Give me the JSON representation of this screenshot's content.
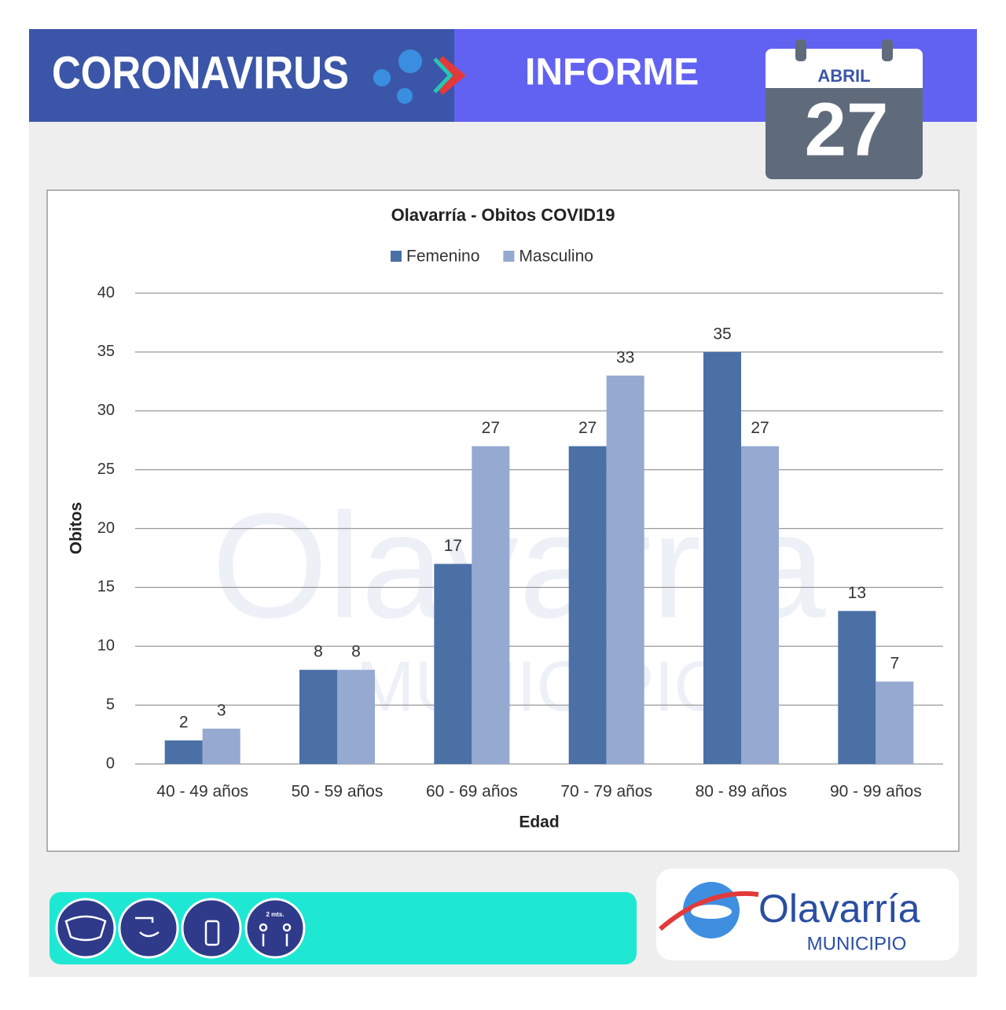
{
  "header": {
    "title": "CORONAVIRUS",
    "report": "INFORME",
    "month": "ABRIL",
    "day": "27"
  },
  "chart_data": {
    "type": "bar",
    "title": "Olavarría - Obitos COVID19",
    "x_label": "Edad",
    "y_label": "Obitos",
    "categories": [
      "40 - 49 años",
      "50 - 59 años",
      "60 - 69 años",
      "70 - 79 años",
      "80 - 89 años",
      "90 - 99 años"
    ],
    "series": [
      {
        "name": "Femenino",
        "color": "#4a70a6",
        "values": [
          2,
          8,
          17,
          27,
          35,
          13
        ]
      },
      {
        "name": "Masculino",
        "color": "#95a9d1",
        "values": [
          3,
          8,
          27,
          33,
          27,
          7
        ]
      }
    ],
    "ylim": [
      0,
      40
    ],
    "yticks": [
      0,
      5,
      10,
      15,
      20,
      25,
      30,
      35,
      40
    ],
    "grid": true,
    "legend": "top"
  },
  "footer": {
    "logo_name": "Olavarría",
    "logo_sub": "MUNICIPIO",
    "distance": "2 mts."
  }
}
